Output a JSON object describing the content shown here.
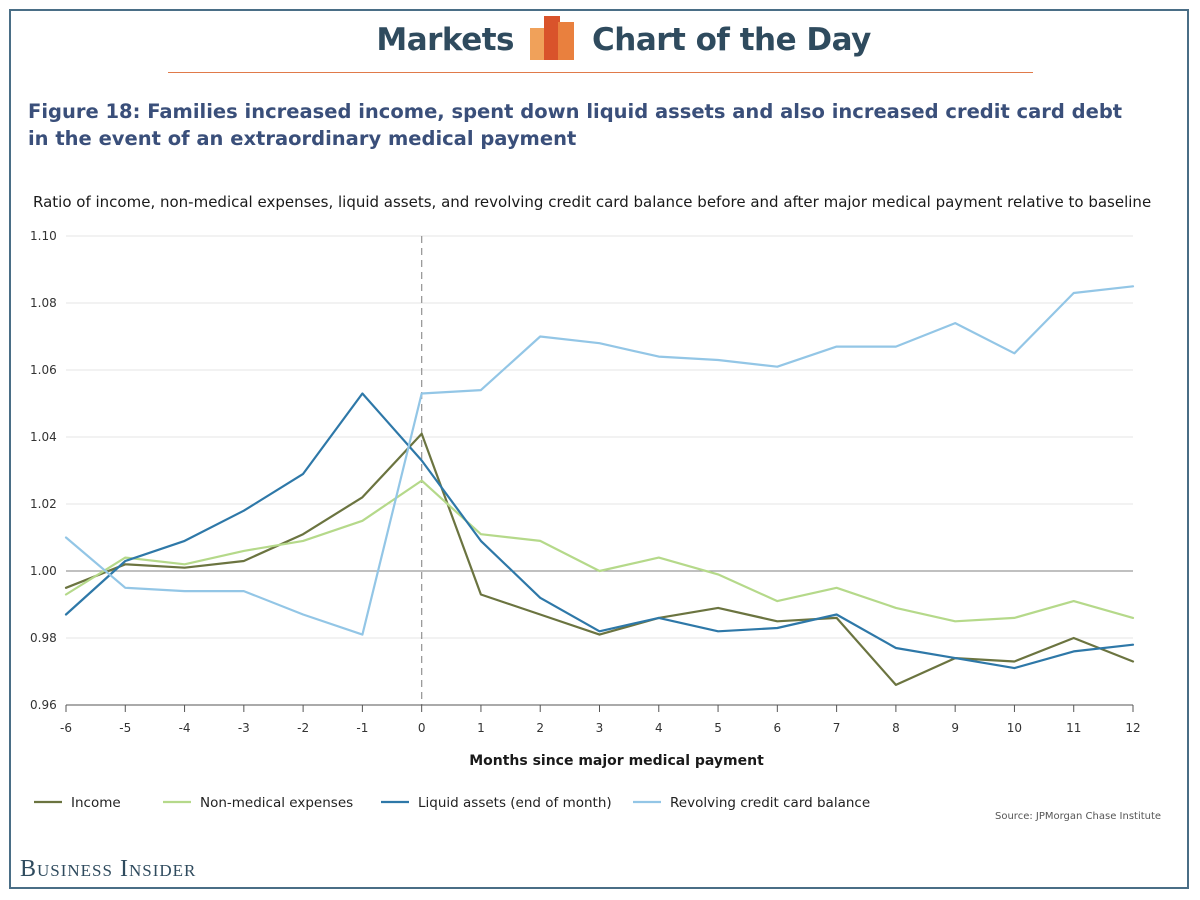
{
  "header": {
    "left_text": "Markets",
    "right_text": "Chart of the Day",
    "logo_icon": "bar-chart-logo-icon",
    "rule_color": "#e07a4a"
  },
  "figure_title": "Figure 18: Families increased income, spent down liquid assets and also increased credit card debt in the event of an extraordinary medical payment",
  "source": "Source:  JPMorgan Chase Institute",
  "brand": "Business Insider",
  "chart_data": {
    "type": "line",
    "title": "Ratio of income, non-medical expenses, liquid assets, and revolving credit card balance before and after major medical payment relative to baseline",
    "xlabel": "Months since major medical payment",
    "ylabel": "",
    "x": [
      -6,
      -5,
      -4,
      -3,
      -2,
      -1,
      0,
      1,
      2,
      3,
      4,
      5,
      6,
      7,
      8,
      9,
      10,
      11,
      12
    ],
    "x_tick_labels": [
      "-6",
      "-5",
      "-4",
      "-3",
      "-2",
      "-1",
      "0",
      "1",
      "2",
      "3",
      "4",
      "5",
      "6",
      "7",
      "8",
      "9",
      "10",
      "11",
      "12"
    ],
    "ylim": [
      0.96,
      1.1
    ],
    "y_ticks": [
      0.96,
      0.98,
      1.0,
      1.02,
      1.04,
      1.06,
      1.08,
      1.1
    ],
    "y_tick_labels": [
      "0.96",
      "0.98",
      "1.00",
      "1.02",
      "1.04",
      "1.06",
      "1.08",
      "1.10"
    ],
    "reference_line_y": 1.0,
    "event_line_x": 0,
    "grid": "horizontal",
    "legend_position": "bottom",
    "series": [
      {
        "name": "Income",
        "color": "#6b7440",
        "values": [
          0.995,
          1.002,
          1.001,
          1.003,
          1.011,
          1.022,
          1.041,
          0.993,
          0.987,
          0.981,
          0.986,
          0.989,
          0.985,
          0.986,
          0.966,
          0.974,
          0.973,
          0.98,
          0.973
        ]
      },
      {
        "name": "Non-medical expenses",
        "color": "#b5d98a",
        "values": [
          0.993,
          1.004,
          1.002,
          1.006,
          1.009,
          1.015,
          1.027,
          1.011,
          1.009,
          1.0,
          1.004,
          0.999,
          0.991,
          0.995,
          0.989,
          0.985,
          0.986,
          0.991,
          0.986
        ]
      },
      {
        "name": "Liquid assets (end of month)",
        "color": "#2e78a8",
        "values": [
          0.987,
          1.003,
          1.009,
          1.018,
          1.029,
          1.053,
          1.033,
          1.009,
          0.992,
          0.982,
          0.986,
          0.982,
          0.983,
          0.987,
          0.977,
          0.974,
          0.971,
          0.976,
          0.978
        ]
      },
      {
        "name": "Revolving credit card balance",
        "color": "#93c6e6",
        "values": [
          1.01,
          0.995,
          0.994,
          0.994,
          0.987,
          0.981,
          1.053,
          1.054,
          1.07,
          1.068,
          1.064,
          1.063,
          1.061,
          1.067,
          1.067,
          1.074,
          1.065,
          1.083,
          1.085
        ]
      }
    ]
  }
}
